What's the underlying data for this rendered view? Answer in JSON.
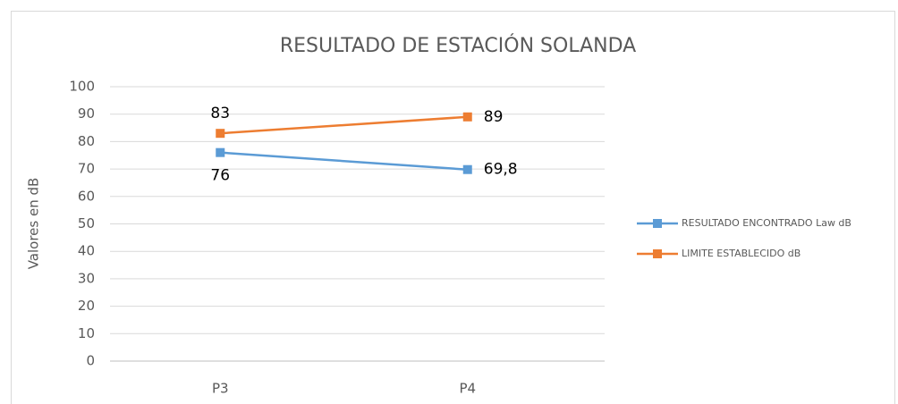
{
  "chart_data": {
    "type": "line",
    "title": "RESULTADO DE ESTACIÓN SOLANDA",
    "ylabel": "Valores en dB",
    "categories": [
      "P3",
      "P4"
    ],
    "series": [
      {
        "name": "RESULTADO ENCONTRADO Law dB",
        "color": "#5b9bd5",
        "values": [
          76,
          69.8
        ],
        "value_labels": [
          "76",
          "69,8"
        ]
      },
      {
        "name": "LIMITE ESTABLECIDO dB",
        "color": "#ed7d31",
        "values": [
          83,
          89
        ]
      }
    ],
    "ylim": [
      0,
      100
    ],
    "yticks": [
      0,
      10,
      20,
      30,
      40,
      50,
      60,
      70,
      80,
      90,
      100
    ],
    "grid": true,
    "legend": "right"
  }
}
